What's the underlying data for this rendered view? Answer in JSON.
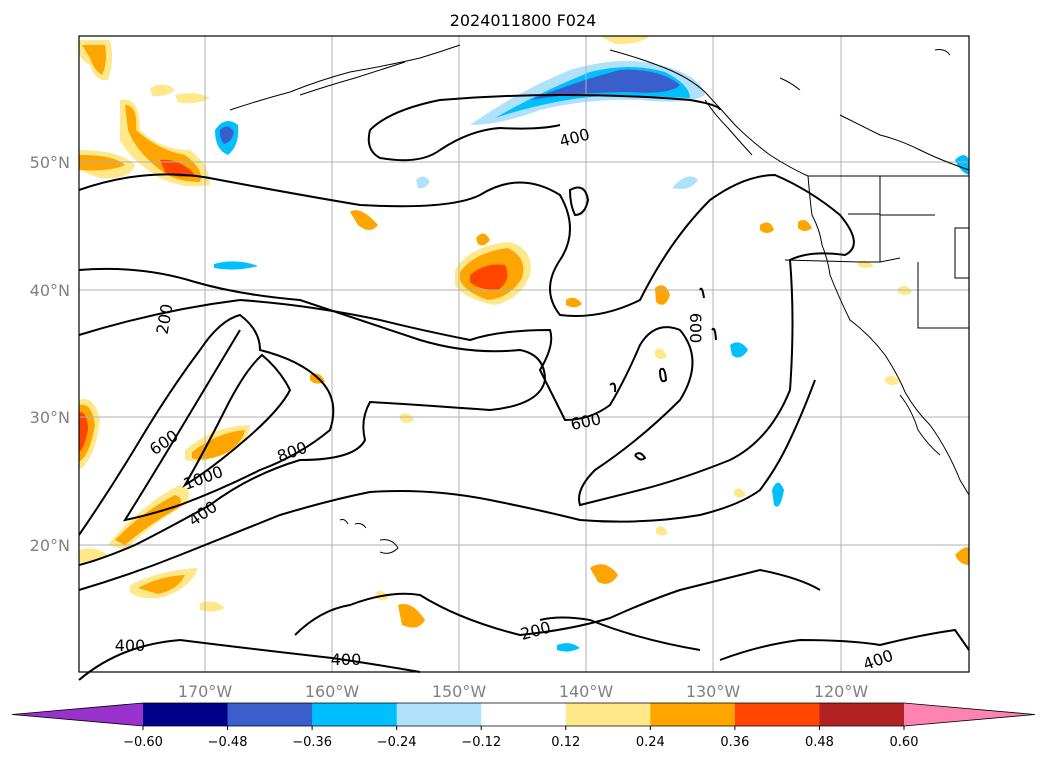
{
  "title": "2024011800 F024",
  "map": {
    "lat_labels": [
      "50°N",
      "40°N",
      "30°N",
      "20°N"
    ],
    "lon_labels": [
      "170°W",
      "160°W",
      "150°W",
      "140°W",
      "130°W",
      "120°W"
    ],
    "contour_labels": [
      "200",
      "600",
      "1000",
      "800",
      "400",
      "400",
      "600",
      "400",
      "200",
      "400",
      "400",
      "600"
    ],
    "colors": {
      "contour": "#000000",
      "grid": "#b0b0b0",
      "coast": "#000000"
    }
  },
  "colorbar": {
    "ticks": [
      "−0.60",
      "−0.48",
      "−0.36",
      "−0.24",
      "−0.12",
      "0.12",
      "0.24",
      "0.36",
      "0.48",
      "0.60"
    ],
    "colors": [
      "#9932cc",
      "#00008b",
      "#3a5fcd",
      "#00bfff",
      "#afe1fa",
      "#ffffff",
      "#ffe88a",
      "#ffa500",
      "#ff4500",
      "#b22222",
      "#ff83b0"
    ]
  }
}
